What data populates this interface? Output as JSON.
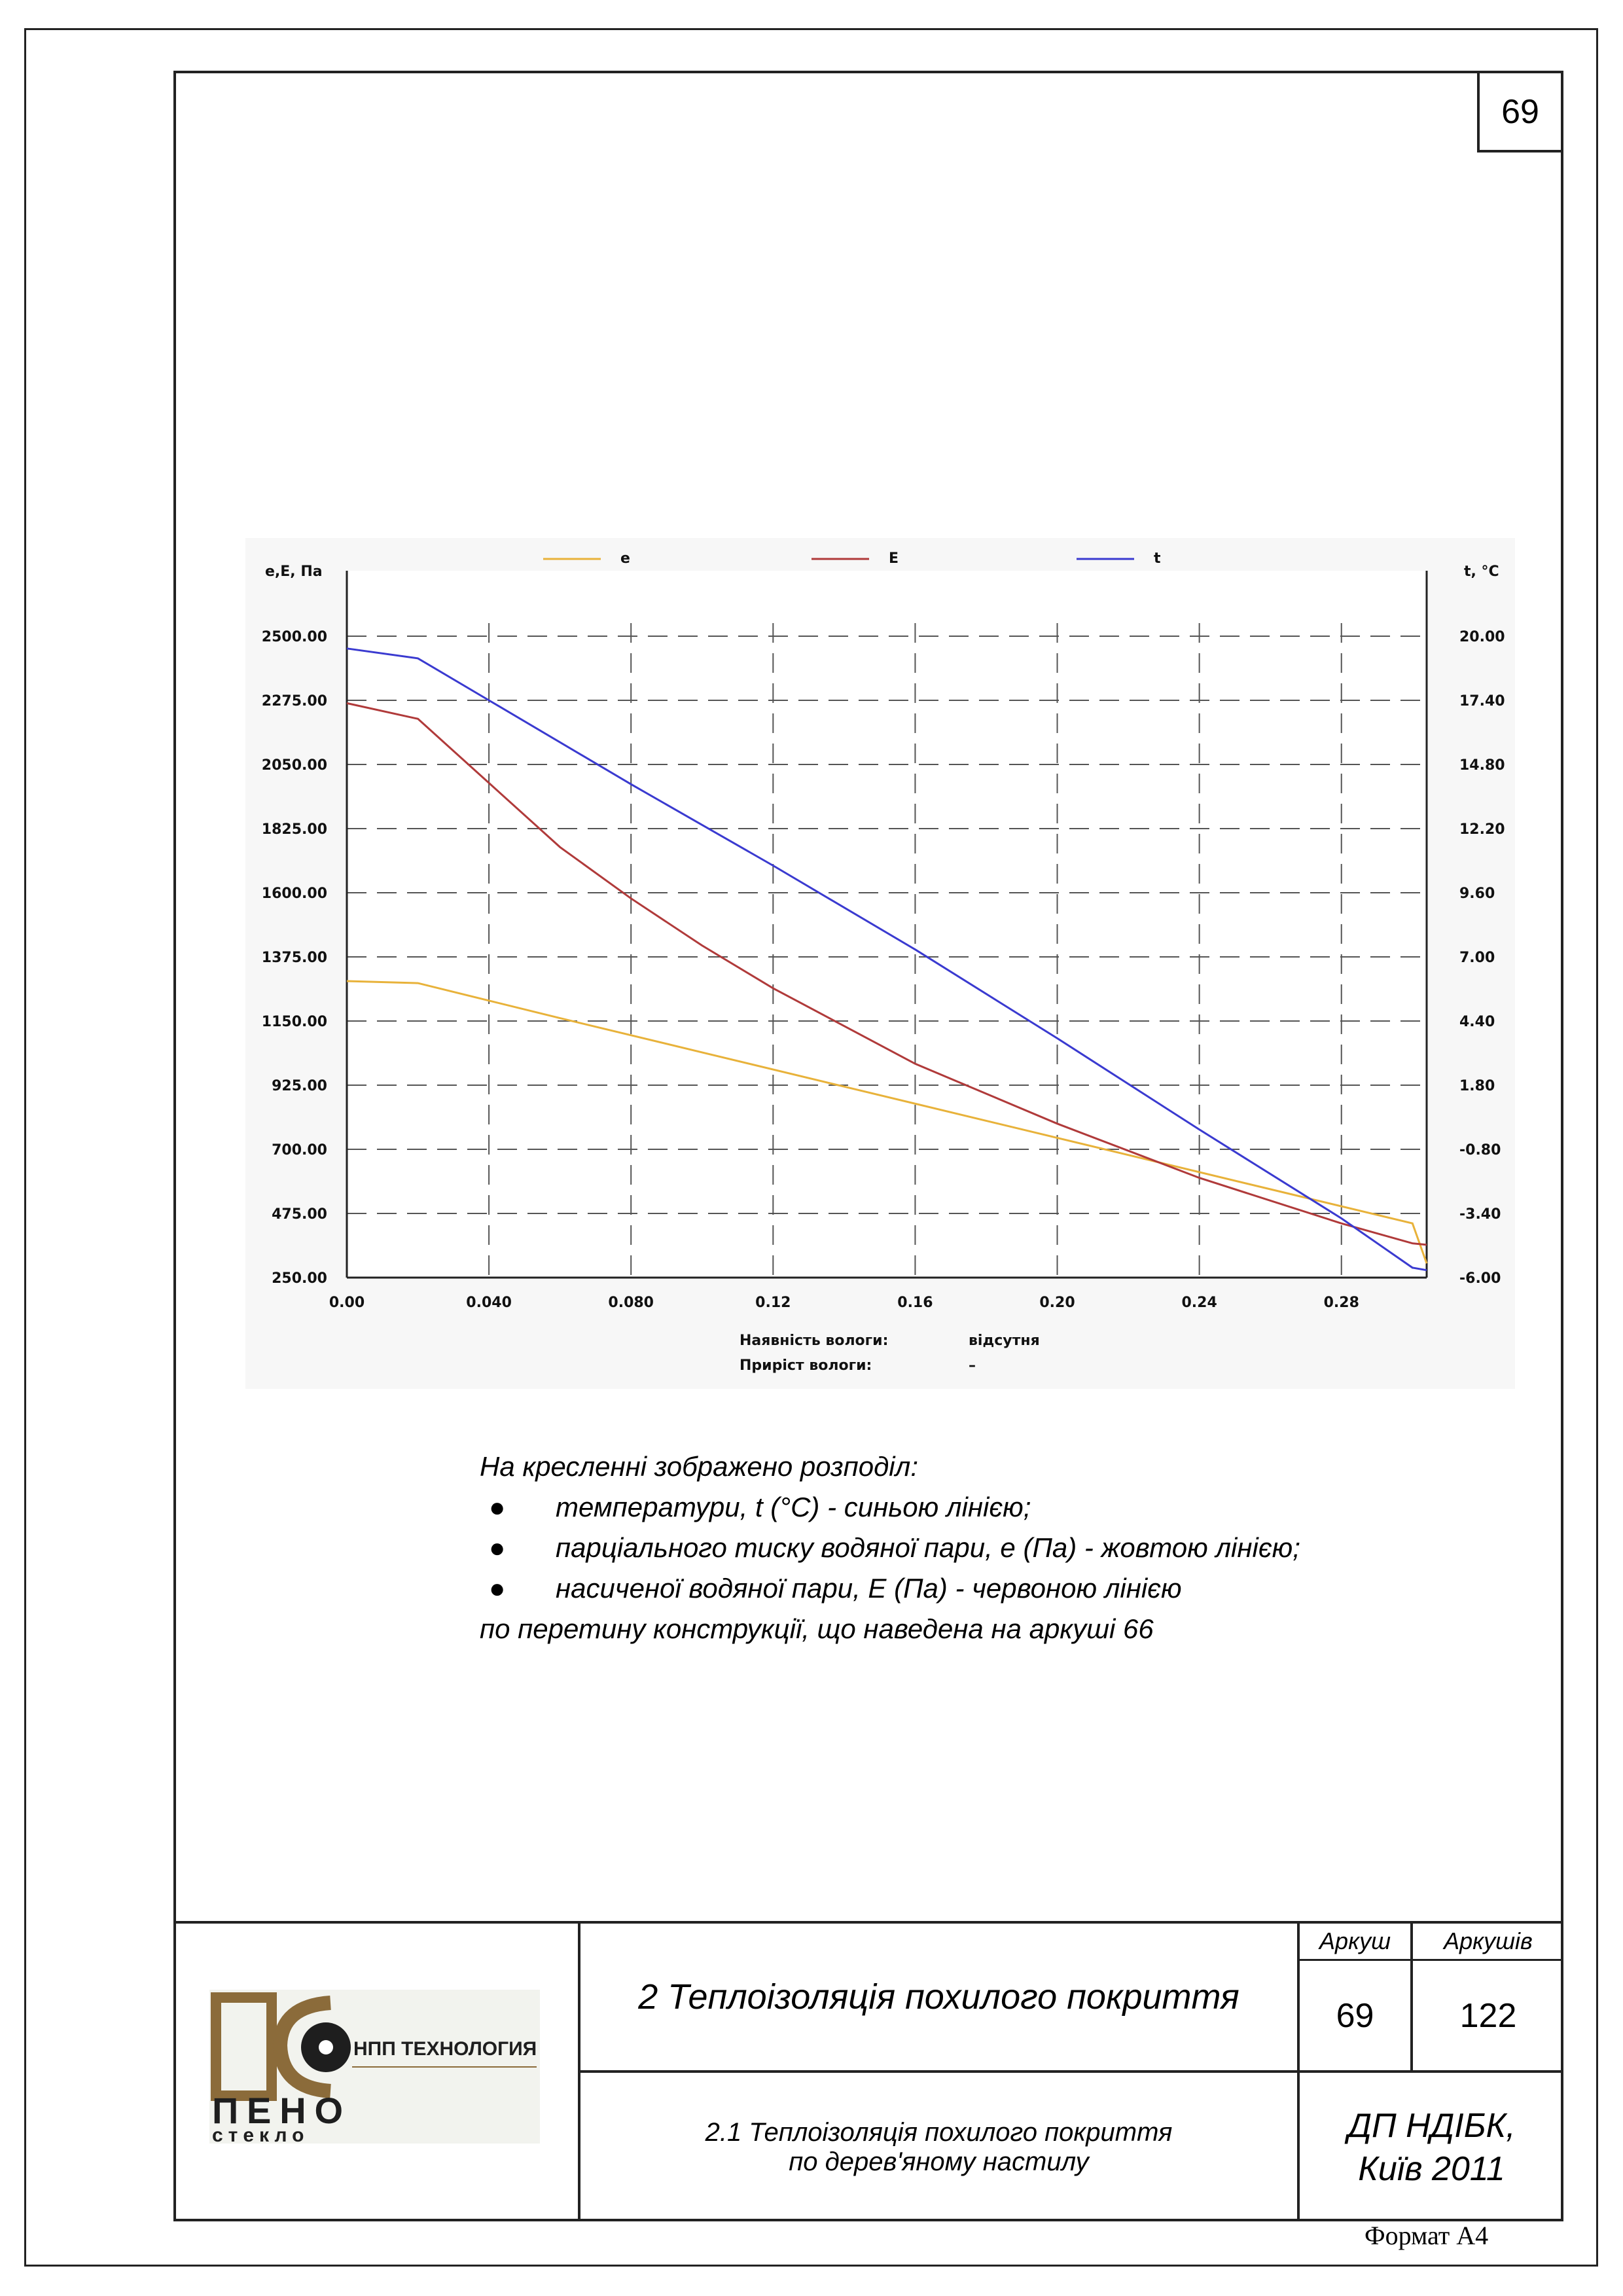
{
  "page_number": "69",
  "chart_data": {
    "type": "line",
    "ylabel_left": "e,E, Па",
    "ylabel_right": "t, °C",
    "xlim": [
      0,
      0.304
    ],
    "ylim_left": [
      250,
      2500
    ],
    "ylim_right": [
      -6,
      20
    ],
    "x_ticks": [
      0,
      0.04,
      0.08,
      0.12,
      0.16,
      0.2,
      0.24,
      0.28
    ],
    "x_tick_labels": [
      "0.00",
      "0.040",
      "0.080",
      "0.12",
      "0.16",
      "0.20",
      "0.24",
      "0.28"
    ],
    "y_left_ticks": [
      2500,
      2275,
      2050,
      1825,
      1600,
      1375,
      1150,
      925,
      700,
      475,
      250
    ],
    "y_left_tick_labels": [
      "2500.00",
      "2275.00",
      "2050.00",
      "1825.00",
      "1600.00",
      "1375.00",
      "1150.00",
      "925.00",
      "700.00",
      "475.00",
      "250.00"
    ],
    "y_right_ticks": [
      20,
      17.4,
      14.8,
      12.2,
      9.6,
      7,
      4.4,
      1.8,
      -0.8,
      -3.4,
      -6
    ],
    "y_right_tick_labels": [
      "20.00",
      "17.40",
      "14.80",
      "12.20",
      "9.60",
      "7.00",
      "4.40",
      "1.80",
      "-0.80",
      "-3.40",
      "-6.00"
    ],
    "grid": true,
    "legend_position": "top",
    "series": [
      {
        "name": "e",
        "color": "#e8b23a",
        "axis": "left",
        "x": [
          0,
          0.02,
          0.06,
          0.1,
          0.14,
          0.18,
          0.22,
          0.26,
          0.3,
          0.304
        ],
        "y": [
          1290,
          1283,
          1160,
          1040,
          920,
          800,
          680,
          560,
          440,
          300
        ]
      },
      {
        "name": "E",
        "color": "#b03a3a",
        "axis": "left",
        "x": [
          0,
          0.02,
          0.04,
          0.06,
          0.08,
          0.1,
          0.12,
          0.16,
          0.2,
          0.24,
          0.28,
          0.3,
          0.304
        ],
        "y": [
          2265,
          2210,
          1985,
          1760,
          1580,
          1415,
          1265,
          1000,
          790,
          600,
          440,
          370,
          365
        ]
      },
      {
        "name": "t",
        "color": "#3a3ad0",
        "axis": "right",
        "x": [
          0,
          0.02,
          0.04,
          0.08,
          0.12,
          0.16,
          0.2,
          0.24,
          0.28,
          0.3,
          0.304
        ],
        "y": [
          19.5,
          19.1,
          17.4,
          14.0,
          10.7,
          7.3,
          3.7,
          0.0,
          -3.6,
          -5.6,
          -5.7
        ]
      }
    ],
    "info": [
      {
        "label": "Наявність вологи:",
        "value": "відсутня"
      },
      {
        "label": "Приріст вологи:",
        "value": "–"
      }
    ]
  },
  "description": {
    "intro": "На кресленні зображено розподіл:",
    "items": [
      "температури, t (°C) - синьою лінією;",
      "парціального тиску водяної пари, е (Па) - жовтою лінією;",
      "насиченої водяної пари, Е (Па) - червоною лінією"
    ],
    "outro": "по перетину конструкції, що наведена на аркуші 66"
  },
  "title_block": {
    "logo": {
      "line1": "НПП ТЕХНОЛОГИЯ",
      "line2": "ПЕНО",
      "line3": "стекло"
    },
    "title": "2 Теплоізоляція похилого покриття",
    "subtitle_line1": "2.1 Теплоізоляція похилого покриття",
    "subtitle_line2": "по дерев'яному настилу",
    "sheet_label": "Аркуш",
    "sheets_label": "Аркушів",
    "sheet": "69",
    "sheets": "122",
    "org_line1": "ДП НДІБК,",
    "org_line2": "Київ 2011"
  },
  "format_label": "Формат А4",
  "colors": {
    "yellow": "#e8b23a",
    "red": "#b03a3a",
    "blue": "#3a3ad0",
    "chart_bg": "#f7f7f7"
  }
}
